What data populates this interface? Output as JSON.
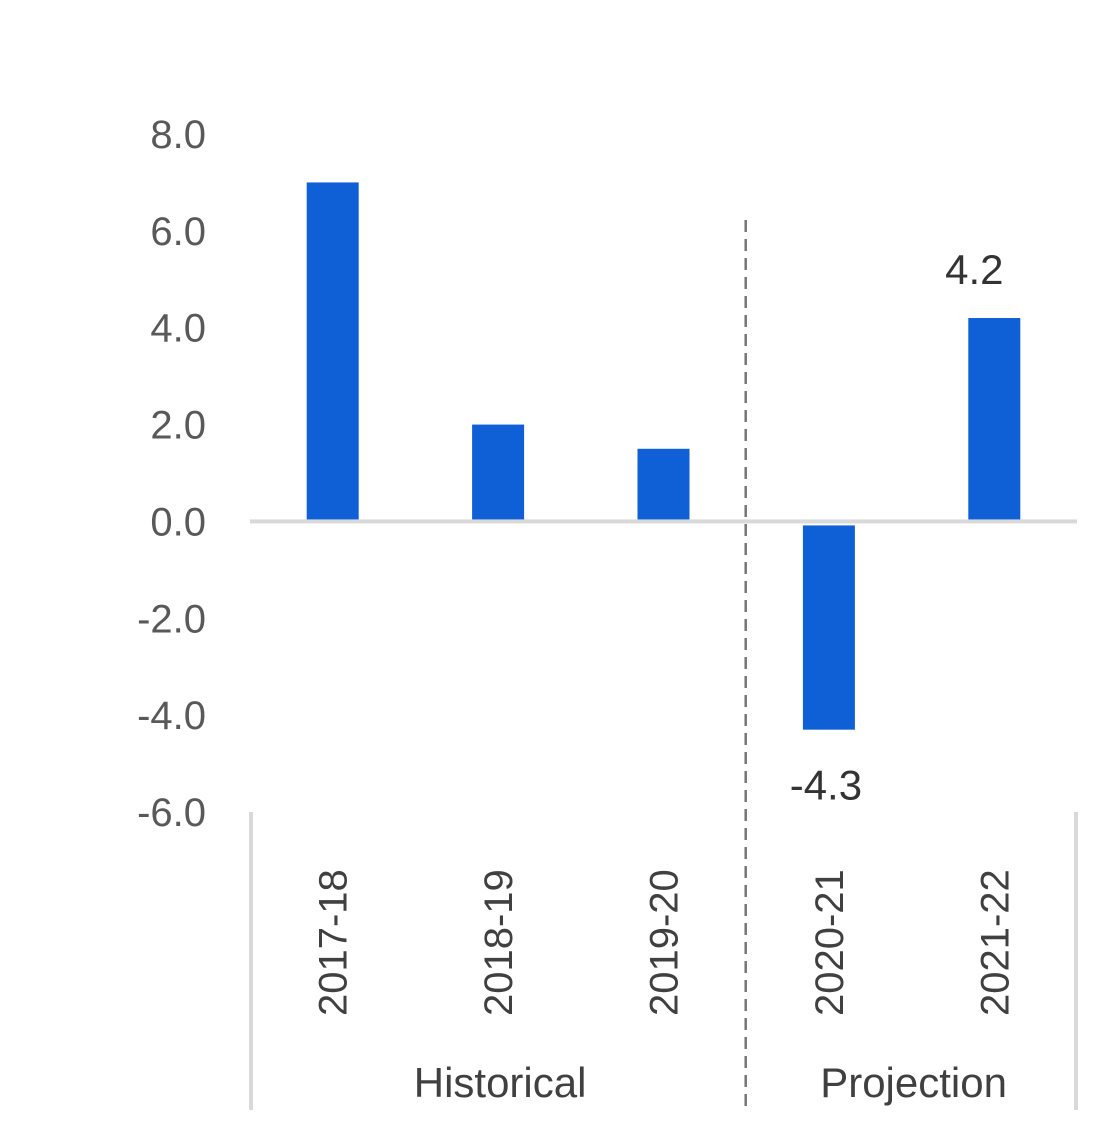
{
  "chart_data": {
    "type": "bar",
    "categories": [
      "2017-18",
      "2018-19",
      "2019-20",
      "2020-21",
      "2021-22"
    ],
    "values": [
      7.0,
      2.0,
      1.5,
      -4.3,
      4.2
    ],
    "data_labels": [
      "",
      "",
      "",
      "-4.3",
      "4.2"
    ],
    "groups": [
      {
        "label": "Historical",
        "categories": [
          "2017-18",
          "2018-19",
          "2019-20"
        ]
      },
      {
        "label": "Projection",
        "categories": [
          "2020-21",
          "2021-22"
        ]
      }
    ],
    "yticks": [
      "8.0",
      "6.0",
      "4.0",
      "2.0",
      "0.0",
      "-2.0",
      "-4.0",
      "-6.0"
    ],
    "ylim": [
      -6,
      8
    ],
    "bar_color": "#0F5FD6",
    "divider": "dashed line between 2019-20 and 2020-21",
    "title": "",
    "xlabel": "",
    "ylabel": "",
    "grid": false,
    "legend": "none"
  }
}
